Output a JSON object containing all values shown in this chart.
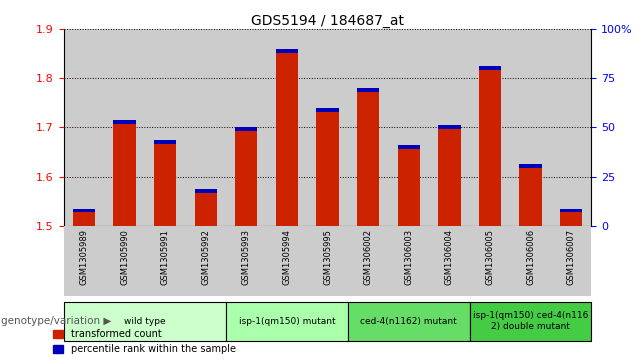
{
  "title": "GDS5194 / 184687_at",
  "samples": [
    "GSM1305989",
    "GSM1305990",
    "GSM1305991",
    "GSM1305992",
    "GSM1305993",
    "GSM1305994",
    "GSM1305995",
    "GSM1306002",
    "GSM1306003",
    "GSM1306004",
    "GSM1306005",
    "GSM1306006",
    "GSM1306007"
  ],
  "red_values": [
    1.535,
    1.715,
    1.675,
    1.575,
    1.7,
    1.86,
    1.74,
    1.78,
    1.665,
    1.705,
    1.825,
    1.625,
    1.535
  ],
  "blue_heights": [
    0.008,
    0.008,
    0.008,
    0.008,
    0.008,
    0.008,
    0.008,
    0.008,
    0.008,
    0.008,
    0.008,
    0.008,
    0.008
  ],
  "ylim_left": [
    1.5,
    1.9
  ],
  "ylim_right": [
    0,
    100
  ],
  "yticks_left": [
    1.5,
    1.6,
    1.7,
    1.8,
    1.9
  ],
  "yticks_right": [
    0,
    25,
    50,
    75,
    100
  ],
  "bar_base": 1.5,
  "bar_width": 0.55,
  "red_color": "#cc2200",
  "blue_color": "#0000bb",
  "bg_color": "#ffffff",
  "cell_bg": "#cccccc",
  "genotype_groups": [
    {
      "label": "wild type",
      "indices": [
        0,
        1,
        2,
        3
      ],
      "color": "#ccffcc"
    },
    {
      "label": "isp-1(qm150) mutant",
      "indices": [
        4,
        5,
        6
      ],
      "color": "#aaffaa"
    },
    {
      "label": "ced-4(n1162) mutant",
      "indices": [
        7,
        8,
        9
      ],
      "color": "#66dd66"
    },
    {
      "label": "isp-1(qm150) ced-4(n116\n2) double mutant",
      "indices": [
        10,
        11,
        12
      ],
      "color": "#44cc44"
    }
  ],
  "legend_red": "transformed count",
  "legend_blue": "percentile rank within the sample",
  "xlabel_genotype": "genotype/variation"
}
